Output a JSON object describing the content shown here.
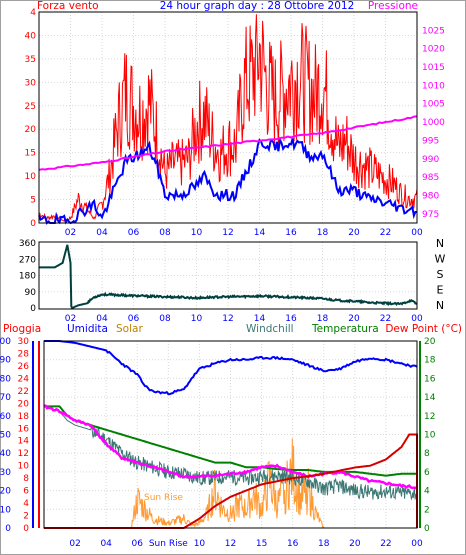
{
  "colors": {
    "wind": "#ff0000",
    "wind_avg": "#0000ff",
    "pressure": "#ff00ff",
    "direction": "#00403f",
    "humidity": "#0000ff",
    "solar": "#ff9a33",
    "windchill": "#3b7874",
    "temperature": "#008000",
    "dewpoint": "#ff00ff",
    "rain": "#d10000",
    "text_blue": "#0000ff",
    "text_red": "#ff0000"
  },
  "top": {
    "title": "24 hour graph day : 28 Ottobre 2012",
    "left_label": "Forza vento",
    "right_label": "Pressione",
    "left_ticks": [
      "0",
      "5",
      "10",
      "15",
      "20",
      "25",
      "30",
      "35",
      "40",
      "4"
    ],
    "right_ticks": [
      "975",
      "980",
      "985",
      "990",
      "995",
      "1000",
      "1005",
      "1010",
      "1015",
      "1020",
      "1025"
    ],
    "x_ticks": [
      "02",
      "04",
      "06",
      "08",
      "10",
      "12",
      "14",
      "16",
      "18",
      "20",
      "22",
      "00"
    ]
  },
  "middle": {
    "left_ticks": [
      "0",
      "90",
      "180",
      "270",
      "360"
    ],
    "right_labels": [
      "N",
      "W",
      "S",
      "E",
      "N"
    ],
    "x_ticks": [
      "02",
      "04",
      "06",
      "08",
      "10",
      "12",
      "14",
      "16",
      "18",
      "20",
      "22",
      "00"
    ]
  },
  "bottom": {
    "labels": {
      "rain": "Pioggia",
      "humidity": "Umidita",
      "solar": "Solar",
      "windchill": "Windchill",
      "temperature": "Temperatura",
      "dewpoint": "Dew Point (°C)"
    },
    "rain_ticks": [
      "0",
      "2",
      "4",
      "6",
      "8",
      "10",
      "12",
      "14",
      "16",
      "18",
      "20",
      "22",
      "24",
      "26",
      "28",
      "30"
    ],
    "hum_ticks": [
      "0",
      "10",
      "20",
      "30",
      "40",
      "50",
      "60",
      "70",
      "80",
      "90",
      "100"
    ],
    "temp_ticks": [
      "0",
      "2",
      "4",
      "6",
      "8",
      "10",
      "12",
      "14",
      "16",
      "18",
      "20"
    ],
    "sunrise_label": "Sun Rise",
    "x_ticks": [
      "02",
      "04",
      "06",
      "Sun Rise",
      "10",
      "12",
      "15",
      "16",
      "18",
      "20",
      "22",
      "00"
    ]
  },
  "chart_data": [
    {
      "type": "line",
      "title": "24 hour graph day : 28 Ottobre 2012",
      "x_unit": "hour",
      "ylabel": "Forza vento",
      "y2label": "Pressione",
      "ylim": [
        0,
        45
      ],
      "y2lim": [
        972.5,
        1030
      ],
      "series": [
        {
          "axis": "left",
          "hours": [
            0,
            0.5,
            1,
            1.5,
            2,
            2.5,
            3,
            3.5,
            4,
            4.5,
            5,
            5.5,
            6,
            6.5,
            7,
            7.5,
            8,
            8.5,
            9,
            9.5,
            10,
            10.5,
            11,
            11.5,
            12,
            12.5,
            13,
            13.5,
            14,
            14.5,
            15,
            15.5,
            16,
            16.5,
            17,
            17.5,
            18,
            18.5,
            19,
            19.5,
            20,
            20.5,
            21,
            21.5,
            22,
            22.5,
            23,
            23.5,
            24
          ],
          "values": [
            2,
            1,
            1.5,
            0.5,
            1,
            5,
            3,
            1,
            4,
            10,
            20,
            27,
            24,
            22,
            25,
            18,
            10,
            12,
            12,
            13,
            20,
            22,
            17,
            14,
            16,
            16,
            28,
            30,
            35,
            28,
            25,
            27,
            29,
            30,
            28,
            26,
            29,
            22,
            15,
            17,
            13,
            12,
            11,
            10,
            9,
            8,
            6,
            5,
            5
          ]
        },
        {
          "axis": "left",
          "hours": [
            0,
            0.5,
            1,
            1.5,
            2,
            2.5,
            3,
            3.5,
            4,
            4.5,
            5,
            5.5,
            6,
            6.5,
            7,
            7.5,
            8,
            8.5,
            9,
            9.5,
            10,
            10.5,
            11,
            11.5,
            12,
            12.5,
            13,
            13.5,
            14,
            14.5,
            15,
            15.5,
            16,
            16.5,
            17,
            17.5,
            18,
            18.5,
            19,
            19.5,
            20,
            20.5,
            21,
            21.5,
            22,
            22.5,
            23,
            23.5,
            24
          ],
          "values": [
            0.5,
            0.5,
            0.5,
            0.3,
            0.4,
            2,
            3,
            4,
            1,
            5,
            9,
            13,
            14,
            15,
            16,
            12,
            6,
            6,
            6,
            7,
            8,
            10,
            7,
            6,
            6,
            6,
            10,
            13,
            17,
            17,
            16,
            17,
            17,
            17,
            15,
            14,
            15,
            11,
            7,
            7,
            7,
            6,
            5,
            5,
            4,
            4,
            3,
            3,
            2.5
          ]
        },
        {
          "axis": "right",
          "hours": [
            0,
            2,
            4,
            6,
            8,
            10,
            12,
            14,
            16,
            18,
            20,
            22,
            24
          ],
          "values": [
            987,
            988,
            989,
            990.5,
            992,
            993,
            994,
            995,
            996,
            997,
            998.5,
            1000,
            1001.5
          ]
        }
      ]
    },
    {
      "type": "line",
      "x_unit": "hour",
      "ylim": [
        0,
        360
      ],
      "series": [
        {
          "hours": [
            0,
            0.5,
            1,
            1.5,
            1.8,
            2,
            2.05,
            2.1,
            2.5,
            3,
            3.5,
            4,
            5,
            6,
            7,
            8,
            9,
            10,
            11,
            12,
            13,
            14,
            15,
            16,
            17,
            18,
            19,
            20,
            21,
            22,
            23,
            23.6,
            24
          ],
          "values": [
            225,
            225,
            225,
            250,
            350,
            250,
            10,
            0,
            15,
            25,
            60,
            75,
            72,
            68,
            65,
            62,
            60,
            55,
            60,
            62,
            64,
            66,
            63,
            60,
            56,
            52,
            42,
            38,
            30,
            26,
            22,
            42,
            22
          ]
        }
      ]
    },
    {
      "type": "line",
      "x_unit": "hour",
      "ylabel": "Umidita",
      "ylim": [
        0,
        100
      ],
      "y2lim": [
        0,
        20
      ],
      "series": [
        {
          "axis": "humidity",
          "hours": [
            0,
            1,
            2,
            3,
            4,
            5,
            6,
            6.5,
            7,
            8,
            9,
            9.5,
            10,
            11,
            12,
            13,
            14,
            15,
            16,
            17,
            18,
            19,
            20,
            21,
            22,
            23,
            24
          ],
          "values": [
            100,
            100,
            99,
            97,
            95,
            88,
            82,
            76,
            73,
            72,
            74,
            80,
            85,
            88,
            90,
            90,
            91,
            91,
            90,
            87,
            84,
            85,
            89,
            91,
            90,
            88,
            86
          ]
        },
        {
          "axis": "temp",
          "hours": [
            0,
            1,
            1.5,
            2,
            3,
            4,
            5,
            6,
            7,
            8,
            9,
            10,
            11,
            12,
            13,
            14,
            15,
            16,
            17,
            18,
            19,
            20,
            21,
            22,
            23,
            24
          ],
          "values": [
            13,
            13,
            12,
            11.5,
            11,
            10.5,
            10,
            9.5,
            9,
            8.5,
            8,
            7.5,
            7,
            7,
            6.5,
            6.5,
            6.3,
            6.2,
            6.2,
            6,
            6,
            6,
            5.8,
            5.6,
            5.8,
            5.8
          ]
        },
        {
          "axis": "temp",
          "hours": [
            0,
            1,
            1.5,
            2,
            3,
            4,
            5,
            6,
            7,
            8,
            9,
            10,
            11,
            12,
            13,
            14,
            15,
            16,
            17,
            18,
            19,
            20,
            21,
            22,
            23,
            24
          ],
          "values": [
            13,
            12.5,
            12,
            11.5,
            11,
            9,
            7.5,
            7,
            6.5,
            6,
            5.5,
            5.5,
            5.6,
            5.8,
            6,
            6.5,
            6.6,
            6,
            5.5,
            5.8,
            6,
            5.5,
            5,
            4.8,
            4.5,
            4.3
          ]
        },
        {
          "axis": "temp",
          "hours": [
            0,
            1,
            1.5,
            2,
            3,
            4,
            5,
            6,
            7,
            8,
            9,
            10,
            11,
            12,
            13,
            14,
            15,
            16,
            17,
            18,
            19,
            20,
            21,
            22,
            23,
            24
          ],
          "values": [
            13,
            12.5,
            11.5,
            11,
            10.5,
            9.5,
            8,
            7,
            6.5,
            6,
            5.8,
            5.3,
            5.4,
            5.5,
            5.3,
            5.5,
            5.6,
            5.4,
            5,
            4.2,
            4.5,
            4,
            3.8,
            3.9,
            3.7,
            3.7
          ]
        },
        {
          "axis": "rain",
          "hours": [
            0,
            1,
            2,
            3,
            4,
            5,
            6,
            7,
            8,
            9,
            10,
            11,
            12,
            13,
            14,
            15,
            16,
            17,
            18,
            19,
            20,
            21,
            22,
            23,
            23.5,
            24
          ],
          "values": [
            0,
            0,
            0,
            0,
            0,
            0,
            0,
            0,
            0,
            0,
            1.5,
            3.5,
            5,
            6,
            7,
            7.5,
            8,
            8.3,
            8.7,
            9.2,
            9.7,
            10,
            11,
            13,
            15,
            15
          ]
        },
        {
          "axis": "temp",
          "hours": [
            5.6,
            6,
            7,
            8,
            9,
            9.5,
            10,
            10.5,
            11,
            11.5,
            12,
            12.5,
            13,
            13.5,
            14,
            14.5,
            15,
            15.5,
            16,
            16.5,
            17,
            17.5,
            18
          ],
          "values": [
            0,
            3,
            1,
            0.5,
            1,
            0.3,
            0.5,
            1.5,
            4,
            2,
            1.5,
            2.5,
            2,
            3.5,
            2,
            5,
            2.5,
            4,
            6,
            3,
            4,
            1.5,
            0
          ]
        }
      ]
    }
  ]
}
